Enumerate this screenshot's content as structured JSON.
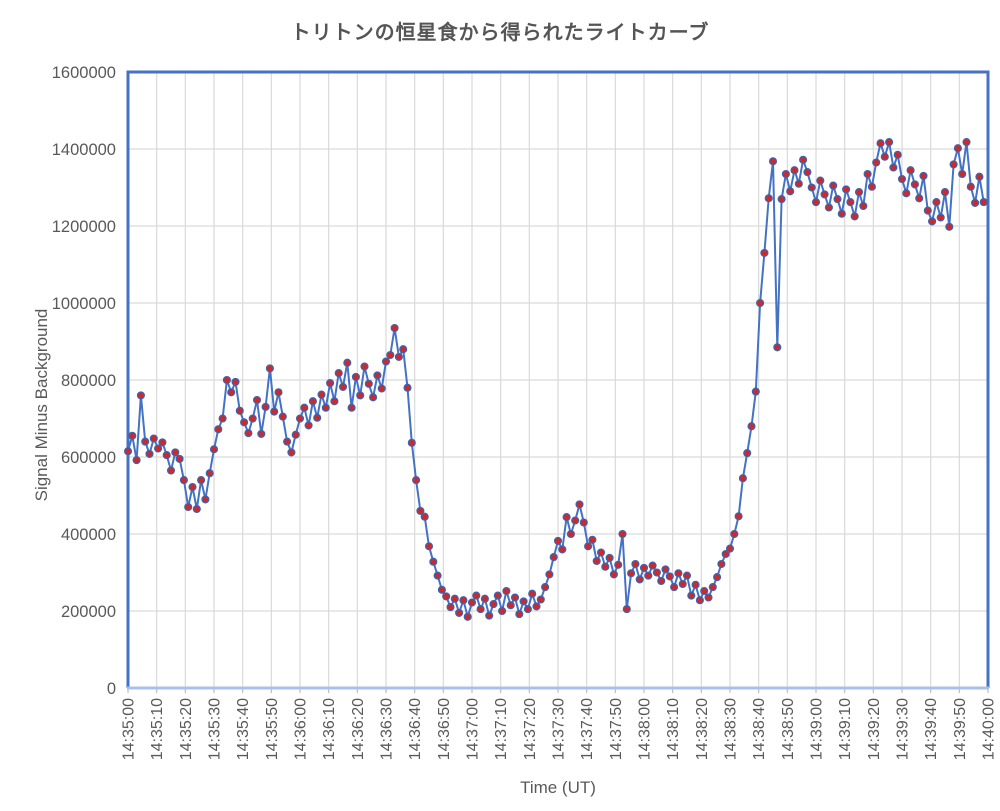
{
  "title": "トリトンの恒星食から得られたライトカーブ",
  "colors": {
    "line": "#4472C4",
    "marker_fill": "#D02828",
    "marker_edge": "#3D63AE",
    "plot_border": "#4472C4",
    "bottom_axis_line": "#A9C0E8",
    "gridline": "#D9D9D9",
    "tick_stub": "#BFBFBF",
    "tick_text": "#595959",
    "title_text": "#555555"
  },
  "chart_data": {
    "type": "line",
    "title": "トリトンの恒星食から得られたライトカーブ",
    "xlabel": "Time (UT)",
    "ylabel": "Signal  Minus Background",
    "legend": "none",
    "grid": true,
    "marker": "circle",
    "x_start": "14:35:00",
    "x_end": "14:40:00",
    "sample_interval_s": 1.5,
    "x_tick_labels": [
      "14:35:00",
      "14:35:10",
      "14:35:20",
      "14:35:30",
      "14:35:40",
      "14:35:50",
      "14:36:00",
      "14:36:10",
      "14:36:20",
      "14:36:30",
      "14:36:40",
      "14:36:50",
      "14:37:00",
      "14:37:10",
      "14:37:20",
      "14:37:30",
      "14:37:40",
      "14:37:50",
      "14:38:00",
      "14:38:10",
      "14:38:20",
      "14:38:30",
      "14:38:40",
      "14:38:50",
      "14:39:00",
      "14:39:10",
      "14:39:20",
      "14:39:30",
      "14:39:40",
      "14:39:50",
      "14:40:00"
    ],
    "x_tick_interval_s": 10,
    "y_ticks": [
      0,
      200000,
      400000,
      600000,
      800000,
      1000000,
      1200000,
      1400000,
      1600000
    ],
    "ylim": [
      0,
      1600000
    ],
    "xlim_s": [
      0,
      300
    ],
    "values": [
      615000,
      655000,
      592000,
      760000,
      640000,
      608000,
      648000,
      622000,
      638000,
      605000,
      565000,
      612000,
      595000,
      540000,
      470000,
      522000,
      465000,
      540000,
      490000,
      558000,
      620000,
      672000,
      700000,
      800000,
      768000,
      795000,
      720000,
      690000,
      662000,
      700000,
      748000,
      660000,
      730000,
      830000,
      718000,
      768000,
      705000,
      640000,
      612000,
      658000,
      700000,
      728000,
      682000,
      745000,
      702000,
      762000,
      728000,
      792000,
      745000,
      818000,
      782000,
      845000,
      728000,
      808000,
      760000,
      835000,
      790000,
      755000,
      812000,
      778000,
      848000,
      865000,
      935000,
      860000,
      880000,
      780000,
      637000,
      540000,
      460000,
      445000,
      368000,
      328000,
      292000,
      255000,
      238000,
      210000,
      232000,
      195000,
      228000,
      185000,
      222000,
      240000,
      205000,
      232000,
      188000,
      218000,
      240000,
      200000,
      252000,
      215000,
      235000,
      192000,
      225000,
      205000,
      245000,
      212000,
      230000,
      262000,
      295000,
      340000,
      382000,
      360000,
      444000,
      400000,
      435000,
      477000,
      430000,
      368000,
      385000,
      330000,
      352000,
      315000,
      338000,
      295000,
      320000,
      400000,
      205000,
      298000,
      322000,
      282000,
      312000,
      292000,
      318000,
      300000,
      278000,
      308000,
      290000,
      262000,
      298000,
      270000,
      292000,
      240000,
      268000,
      228000,
      252000,
      235000,
      262000,
      288000,
      322000,
      348000,
      362000,
      400000,
      446000,
      545000,
      610000,
      680000,
      770000,
      1000000,
      1130000,
      1272000,
      1368000,
      885000,
      1270000,
      1335000,
      1290000,
      1345000,
      1310000,
      1372000,
      1340000,
      1300000,
      1262000,
      1318000,
      1282000,
      1248000,
      1305000,
      1270000,
      1232000,
      1295000,
      1262000,
      1225000,
      1288000,
      1252000,
      1335000,
      1302000,
      1365000,
      1415000,
      1380000,
      1418000,
      1352000,
      1385000,
      1322000,
      1285000,
      1345000,
      1308000,
      1272000,
      1330000,
      1240000,
      1212000,
      1262000,
      1222000,
      1288000,
      1198000,
      1360000,
      1402000,
      1335000,
      1418000,
      1302000,
      1260000,
      1328000,
      1262000
    ]
  }
}
